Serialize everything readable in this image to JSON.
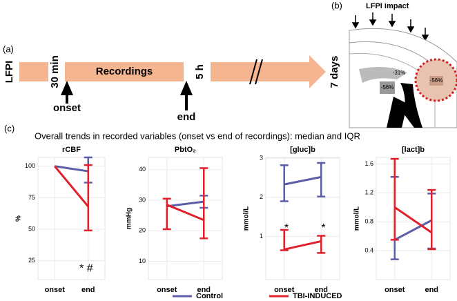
{
  "panel_a": {
    "label": "(a)",
    "start": "LFPI",
    "t1": "30 min",
    "phase": "Recordings",
    "t2": "5 h",
    "t3": "7 days",
    "onset": "onset",
    "end": "end"
  },
  "panel_b": {
    "label": "(b)",
    "impact": "LFPI impact",
    "region_labels": [
      "-56%",
      "-31%",
      "-56%"
    ]
  },
  "panel_c": {
    "label": "(c)",
    "caption": "Overall trends  in recorded variables (onset vs end of recordings): median and IQR"
  },
  "chart_data": [
    {
      "type": "line",
      "title": "rCBF",
      "y_label": "%",
      "categories": [
        "onset",
        "end"
      ],
      "ylim": [
        10,
        107
      ],
      "yticks": [
        25,
        50,
        75,
        100
      ],
      "grid": true,
      "annotations": [
        "* #"
      ],
      "series": [
        {
          "name": "Control",
          "color": "#5b5ea6",
          "values": [
            100,
            96
          ],
          "error_low": [
            null,
            87
          ],
          "error_high": [
            null,
            107
          ]
        },
        {
          "name": "TBI-INDUCED",
          "color": "#e0202a",
          "values": [
            100,
            68
          ],
          "error_low": [
            null,
            49
          ],
          "error_high": [
            null,
            101
          ]
        }
      ]
    },
    {
      "type": "line",
      "title": "PbtO₂",
      "y_label": "mmHg",
      "categories": [
        "onset",
        "end"
      ],
      "ylim": [
        4,
        44
      ],
      "yticks": [
        10,
        20,
        30,
        40
      ],
      "grid": true,
      "annotations": [],
      "series": [
        {
          "name": "Control",
          "color": "#5b5ea6",
          "values": [
            28,
            29.5
          ],
          "error_low": [
            null,
            27.5
          ],
          "error_high": [
            null,
            31.5
          ]
        },
        {
          "name": "TBI-INDUCED",
          "color": "#e0202a",
          "values": [
            28.5,
            23.5
          ],
          "error_low": [
            20.5,
            17.5
          ],
          "error_high": [
            30.5,
            40.5
          ]
        }
      ]
    },
    {
      "type": "line",
      "title": "[gluc]b",
      "y_label": "mmol/L",
      "categories": [
        "onset",
        "end"
      ],
      "ylim": [
        -0.1,
        3.02
      ],
      "yticks": [
        1,
        2,
        3
      ],
      "grid": true,
      "annotations": [
        "*",
        "*"
      ],
      "series": [
        {
          "name": "Control",
          "color": "#5b5ea6",
          "values": [
            2.33,
            2.52
          ],
          "error_low": [
            1.9,
            2.02
          ],
          "error_high": [
            2.82,
            2.88
          ]
        },
        {
          "name": "TBI-INDUCED",
          "color": "#e0202a",
          "values": [
            0.67,
            0.88
          ],
          "error_low": [
            0.65,
            0.58
          ],
          "error_high": [
            1.17,
            1.02
          ]
        }
      ]
    },
    {
      "type": "line",
      "title": "[lact]b",
      "y_label": "mmol/L",
      "categories": [
        "onset",
        "end"
      ],
      "ylim": [
        0,
        1.69
      ],
      "yticks": [
        0.4,
        0.8,
        1.2,
        1.6
      ],
      "grid": true,
      "annotations": [],
      "series": [
        {
          "name": "Control",
          "color": "#5b5ea6",
          "values": [
            0.55,
            0.82
          ],
          "error_low": [
            0.28,
            0.43
          ],
          "error_high": [
            1.42,
            1.19
          ]
        },
        {
          "name": "TBI-INDUCED",
          "color": "#e0202a",
          "values": [
            1.0,
            0.65
          ],
          "error_low": [
            0.55,
            0.42
          ],
          "error_high": [
            1.67,
            1.24
          ]
        }
      ]
    }
  ]
}
